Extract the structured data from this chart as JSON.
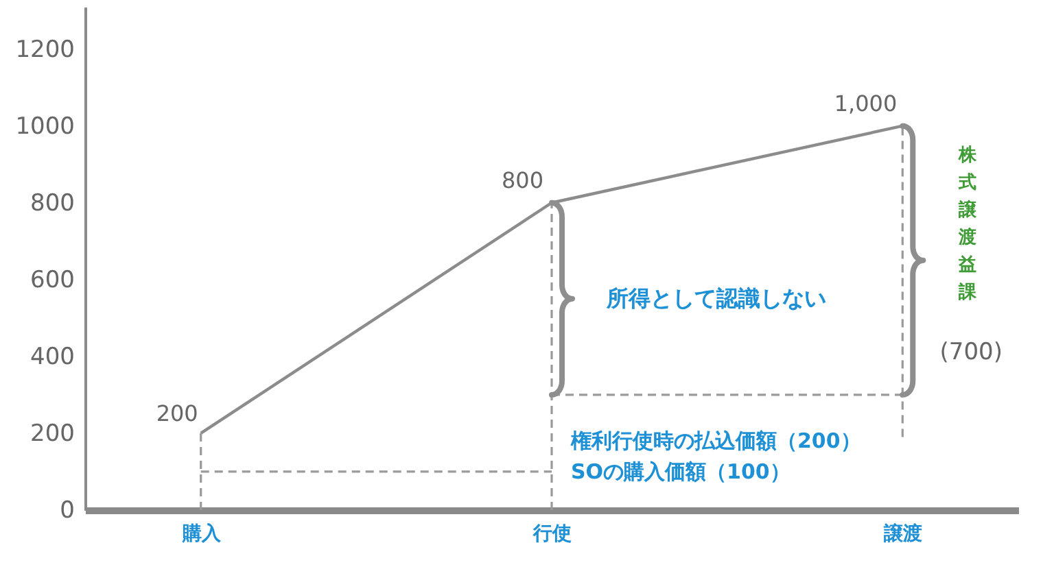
{
  "chart_data": {
    "type": "line",
    "categories": [
      "購入",
      "行使",
      "譲渡"
    ],
    "series": [
      {
        "color": "#8c8c8c",
        "values": [
          200,
          800,
          1000
        ],
        "value_labels": [
          "200",
          "800",
          "1,000"
        ]
      },
      {
        "color": "#9a9a9a",
        "values": [
          100,
          100,
          null
        ],
        "line_style": "dashed"
      },
      {
        "color": "#9a9a9a",
        "values": [
          null,
          300,
          300
        ],
        "line_style": "dashed"
      },
      {
        "color": "#9a9a9a",
        "x": [
          "購入",
          "購入"
        ],
        "values": [
          0,
          200
        ],
        "line_style": "dashed"
      },
      {
        "color": "#9a9a9a",
        "x": [
          "行使",
          "行使"
        ],
        "values": [
          0,
          800
        ],
        "line_style": "dashed"
      },
      {
        "color": "#9a9a9a",
        "x": [
          "譲渡",
          "譲渡"
        ],
        "values": [
          190,
          1000
        ],
        "line_style": "dashed"
      }
    ],
    "ylim": [
      0,
      1310
    ],
    "yticks": [
      0,
      200,
      400,
      600,
      800,
      1000,
      1200
    ],
    "grid": false,
    "annotations": [
      {
        "text": "所得として認識しない",
        "x": "行使",
        "y": 550
      },
      "株式譲渡益課",
      {
        "text": "(700)",
        "x": "譲渡",
        "y": 410
      },
      {
        "text": "権利行使時の払込価額（200）",
        "x": "行使",
        "y": 180
      },
      {
        "text": "SOの購入価額（100）",
        "x": "行使",
        "y": 100
      }
    ]
  }
}
